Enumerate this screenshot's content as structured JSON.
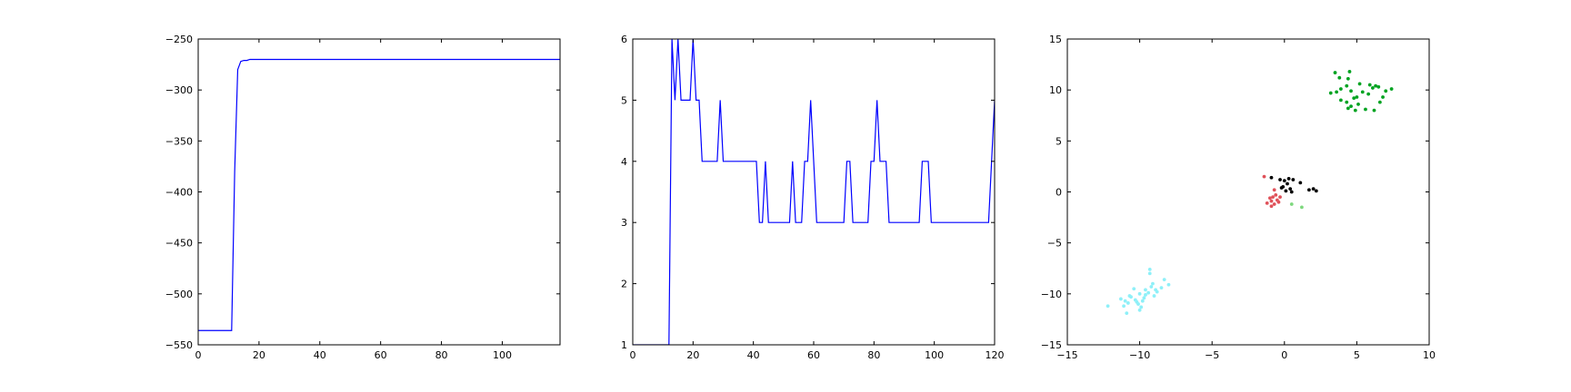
{
  "figure": {
    "background": "#ffffff"
  },
  "chart_data": [
    {
      "type": "line",
      "title": "",
      "xlabel": "",
      "ylabel": "",
      "xlim": [
        0,
        119
      ],
      "ylim": [
        -550,
        -250
      ],
      "xticks": [
        0,
        20,
        40,
        60,
        80,
        100
      ],
      "xtick_labels": [
        "0",
        "20",
        "40",
        "60",
        "80",
        "100"
      ],
      "yticks": [
        -550,
        -500,
        -450,
        -400,
        -350,
        -300,
        -250
      ],
      "ytick_labels": [
        "−550",
        "−500",
        "−450",
        "−400",
        "−350",
        "−300",
        "−250"
      ],
      "grid": false,
      "color": "#0000ff",
      "series": [
        {
          "x": [
            0,
            11,
            12,
            13,
            14,
            15,
            16,
            17,
            18,
            119
          ],
          "y": [
            -536,
            -536,
            -380,
            -280,
            -272,
            -271,
            -271,
            -270,
            -270,
            -270
          ]
        }
      ]
    },
    {
      "type": "line",
      "title": "",
      "xlabel": "",
      "ylabel": "",
      "xlim": [
        0,
        120
      ],
      "ylim": [
        1,
        6
      ],
      "xticks": [
        0,
        20,
        40,
        60,
        80,
        100,
        120
      ],
      "xtick_labels": [
        "0",
        "20",
        "40",
        "60",
        "80",
        "100",
        "120"
      ],
      "yticks": [
        1,
        2,
        3,
        4,
        5,
        6
      ],
      "ytick_labels": [
        "1",
        "2",
        "3",
        "4",
        "5",
        "6"
      ],
      "grid": false,
      "color": "#0000ff",
      "series": [
        {
          "x": [
            0,
            12,
            13,
            14,
            15,
            16,
            17,
            18,
            19,
            20,
            21,
            22,
            23,
            27,
            28,
            29,
            30,
            40,
            41,
            42,
            43,
            44,
            45,
            52,
            53,
            54,
            56,
            57,
            58,
            59,
            61,
            70,
            71,
            72,
            73,
            78,
            79,
            80,
            81,
            82,
            84,
            85,
            95,
            96,
            98,
            99,
            118,
            120
          ],
          "y": [
            1,
            1,
            6,
            5,
            6,
            5,
            5,
            5,
            5,
            6,
            5,
            5,
            4,
            4,
            4,
            5,
            4,
            4,
            4,
            3,
            3,
            4,
            3,
            3,
            4,
            3,
            3,
            4,
            4,
            5,
            3,
            3,
            4,
            4,
            3,
            3,
            4,
            4,
            5,
            4,
            4,
            3,
            3,
            4,
            4,
            3,
            3,
            5
          ]
        }
      ]
    },
    {
      "type": "scatter",
      "title": "",
      "xlabel": "",
      "ylabel": "",
      "xlim": [
        -15,
        10
      ],
      "ylim": [
        -15,
        15
      ],
      "xticks": [
        -15,
        -10,
        -5,
        0,
        5,
        10
      ],
      "xtick_labels": [
        "−15",
        "−10",
        "−5",
        "0",
        "5",
        "10"
      ],
      "yticks": [
        -15,
        -10,
        -5,
        0,
        5,
        10,
        15
      ],
      "ytick_labels": [
        "−15",
        "−10",
        "−5",
        "0",
        "5",
        "10",
        "15"
      ],
      "grid": false,
      "series": [
        {
          "color": "#00a321",
          "points": [
            [
              3.5,
              11.7
            ],
            [
              3.8,
              11.2
            ],
            [
              4.4,
              11.1
            ],
            [
              4.5,
              11.8
            ],
            [
              3.2,
              9.7
            ],
            [
              3.6,
              9.8
            ],
            [
              3.9,
              10.1
            ],
            [
              4.3,
              10.4
            ],
            [
              4.6,
              9.9
            ],
            [
              4.8,
              9.2
            ],
            [
              5.2,
              10.6
            ],
            [
              5.4,
              9.8
            ],
            [
              5.8,
              9.6
            ],
            [
              5.9,
              10.5
            ],
            [
              6.1,
              10.2
            ],
            [
              6.3,
              10.4
            ],
            [
              6.5,
              10.3
            ],
            [
              6.8,
              9.3
            ],
            [
              7.0,
              9.9
            ],
            [
              7.4,
              10.1
            ],
            [
              3.9,
              9.0
            ],
            [
              4.3,
              8.8
            ],
            [
              4.6,
              8.4
            ],
            [
              4.9,
              8.0
            ],
            [
              5.1,
              8.6
            ],
            [
              5.6,
              8.1
            ],
            [
              6.2,
              8.0
            ],
            [
              6.6,
              8.8
            ],
            [
              4.4,
              8.2
            ],
            [
              5.0,
              9.3
            ]
          ]
        },
        {
          "color": "#8ef0f8",
          "points": [
            [
              -12.2,
              -11.2
            ],
            [
              -11.3,
              -10.5
            ],
            [
              -11.0,
              -10.7
            ],
            [
              -10.8,
              -10.9
            ],
            [
              -10.6,
              -10.3
            ],
            [
              -10.3,
              -10.6
            ],
            [
              -10.1,
              -11.0
            ],
            [
              -9.9,
              -11.3
            ],
            [
              -10.0,
              -10.0
            ],
            [
              -9.7,
              -10.4
            ],
            [
              -9.6,
              -9.6
            ],
            [
              -9.4,
              -9.9
            ],
            [
              -9.2,
              -9.3
            ],
            [
              -9.1,
              -9.0
            ],
            [
              -9.0,
              -10.2
            ],
            [
              -8.8,
              -9.8
            ],
            [
              -8.5,
              -9.4
            ],
            [
              -8.3,
              -8.6
            ],
            [
              -9.3,
              -8.0
            ],
            [
              -9.3,
              -7.6
            ],
            [
              -8.0,
              -9.1
            ],
            [
              -10.9,
              -11.9
            ],
            [
              -10.2,
              -10.8
            ],
            [
              -9.8,
              -10.7
            ],
            [
              -10.4,
              -9.5
            ],
            [
              -11.1,
              -11.2
            ],
            [
              -9.6,
              -10.1
            ],
            [
              -8.9,
              -9.6
            ],
            [
              -10.0,
              -11.6
            ],
            [
              -10.7,
              -10.2
            ]
          ]
        },
        {
          "color": "#e0525a",
          "points": [
            [
              -1.4,
              1.5
            ],
            [
              -1.2,
              -1.1
            ],
            [
              -0.9,
              -0.9
            ],
            [
              -0.8,
              -0.5
            ],
            [
              -0.7,
              -1.2
            ],
            [
              -0.6,
              -0.3
            ],
            [
              -0.5,
              -0.8
            ],
            [
              -0.9,
              -1.4
            ],
            [
              -0.4,
              -1.0
            ],
            [
              -1.0,
              -0.6
            ],
            [
              -0.7,
              0.2
            ],
            [
              -0.3,
              -0.5
            ]
          ]
        },
        {
          "color": "#000000",
          "points": [
            [
              -0.9,
              1.4
            ],
            [
              -0.3,
              1.2
            ],
            [
              0.0,
              1.1
            ],
            [
              0.3,
              1.3
            ],
            [
              0.6,
              1.2
            ],
            [
              0.2,
              0.8
            ],
            [
              -0.1,
              0.5
            ],
            [
              0.4,
              0.3
            ],
            [
              0.5,
              0.0
            ],
            [
              0.1,
              0.1
            ],
            [
              -0.2,
              0.4
            ],
            [
              1.1,
              0.9
            ],
            [
              1.7,
              0.2
            ],
            [
              2.0,
              0.3
            ],
            [
              2.2,
              0.1
            ]
          ]
        },
        {
          "color": "#7ed87e",
          "points": [
            [
              0.5,
              -1.2
            ],
            [
              1.2,
              -1.5
            ]
          ]
        }
      ]
    }
  ]
}
